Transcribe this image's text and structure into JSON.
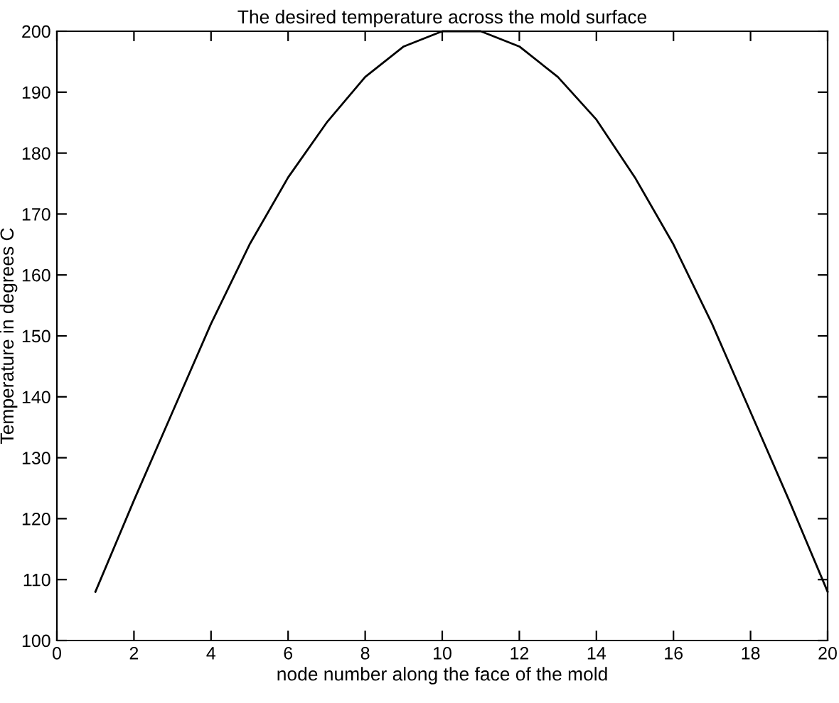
{
  "chart_data": {
    "type": "line",
    "title": "The desired temperature across the mold surface",
    "xlabel": "node number along the face of the mold",
    "ylabel": "Temperature in degrees C",
    "x": [
      1,
      2,
      3,
      4,
      5,
      6,
      7,
      8,
      9,
      10,
      11,
      12,
      13,
      14,
      15,
      16,
      17,
      18,
      19,
      20
    ],
    "series": [
      {
        "color": "#000000",
        "values": [
          108,
          123,
          137.5,
          152,
          165,
          176,
          185,
          192.5,
          197.5,
          200,
          200,
          197.5,
          192.5,
          185.5,
          176,
          165,
          152,
          137.5,
          123,
          108
        ]
      }
    ],
    "xlim": [
      0,
      20
    ],
    "xticks": [
      0,
      2,
      4,
      6,
      8,
      10,
      12,
      14,
      16,
      18,
      20
    ],
    "ylim": [
      100,
      200
    ],
    "yticks": [
      100,
      110,
      120,
      130,
      140,
      150,
      160,
      170,
      180,
      190,
      200
    ],
    "grid": false,
    "marker": "none",
    "line_style": "solid"
  }
}
